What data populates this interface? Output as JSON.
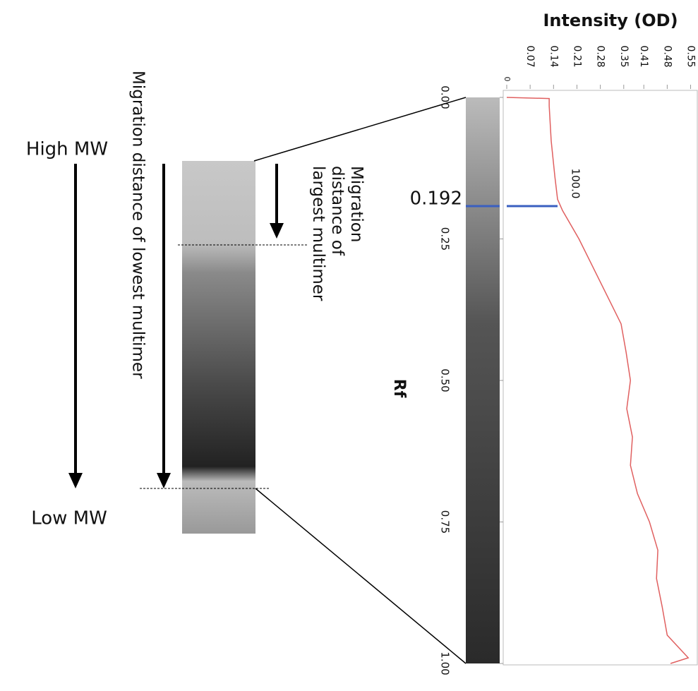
{
  "labels": {
    "high_mw": "High MW",
    "low_mw": "Low MW",
    "lowest": "Migration distance of lowest multimer",
    "largest": [
      "Migration",
      "distance of",
      "largest multimer"
    ]
  },
  "chart_data": {
    "type": "line",
    "title": "Intensity (OD)",
    "y_axis_label": "Rf",
    "x": [
      0,
      0.002,
      0.015,
      0.077,
      0.14,
      0.18,
      0.2,
      0.25,
      0.3,
      0.35,
      0.4,
      0.45,
      0.5,
      0.55,
      0.6,
      0.65,
      0.7,
      0.75,
      0.8,
      0.85,
      0.9,
      0.95,
      0.99,
      1.0
    ],
    "values": [
      0,
      0.127,
      0.127,
      0.133,
      0.144,
      0.152,
      0.167,
      0.216,
      0.258,
      0.3,
      0.342,
      0.357,
      0.37,
      0.359,
      0.376,
      0.37,
      0.391,
      0.427,
      0.452,
      0.448,
      0.465,
      0.48,
      0.543,
      0.49
    ],
    "color": "#e06060",
    "xlim": [
      0,
      1
    ],
    "xticks": [
      {
        "value": 0,
        "label": "0.00"
      },
      0.25,
      {
        "value": 0.5,
        "label": "0.50"
      },
      0.75,
      {
        "value": 1,
        "label": "1.00"
      }
    ],
    "ylim": [
      0,
      0.57
    ],
    "yticks": [
      0,
      0.07,
      0.14,
      0.21,
      0.28,
      0.35,
      0.41,
      0.48,
      0.55
    ],
    "marker_rf": 0.192,
    "marker_color": "#3a5fc0",
    "marker_annotation": "100.0"
  }
}
